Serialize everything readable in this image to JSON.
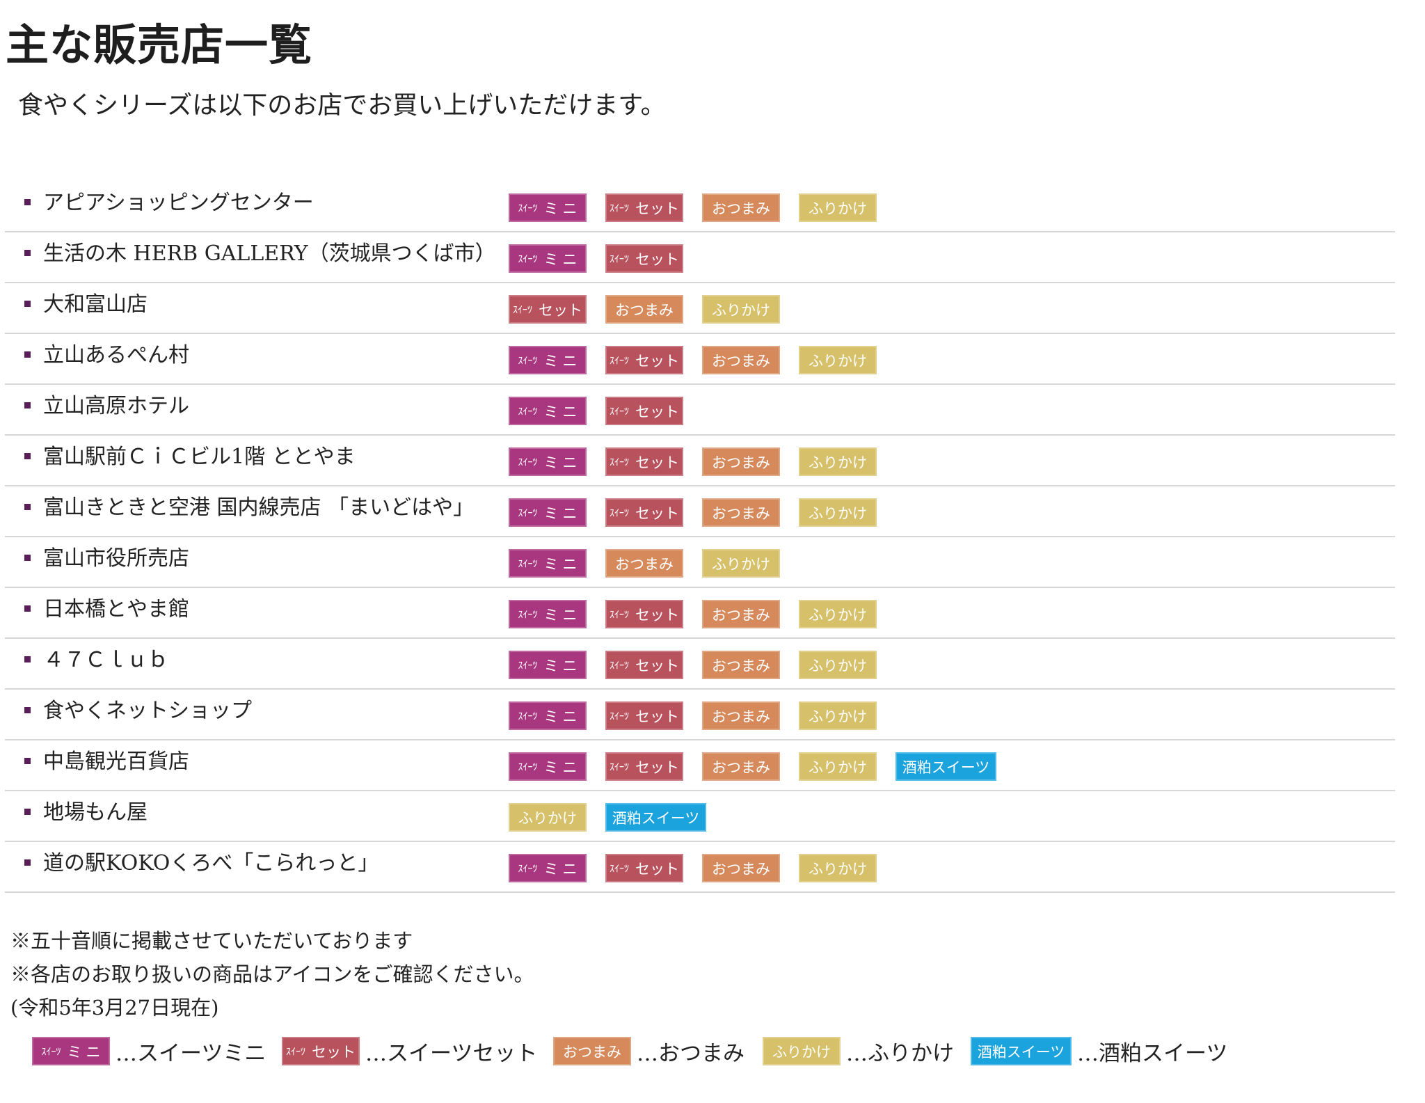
{
  "title": "主な販売店一覧",
  "intro": "食やくシリーズは以下のお店でお買い上げいただけます。",
  "badge_types": {
    "mini": {
      "small": "ｽｲｰﾂ",
      "main": "ミニ",
      "color": "#a8377f"
    },
    "set": {
      "small": "ｽｲｰﾂ",
      "main": "セット",
      "color": "#b8525d"
    },
    "otsumami": {
      "small": "",
      "main": "おつまみ",
      "color": "#d68a5c"
    },
    "furikake": {
      "small": "",
      "main": "ふりかけ",
      "color": "#d7c06a"
    },
    "sakekasu": {
      "small": "",
      "main": "酒粕スイーツ",
      "color": "#1aa3dc"
    }
  },
  "stores": [
    {
      "name": "アピアショッピングセンター",
      "badges": [
        "mini",
        "set",
        "otsumami",
        "furikake"
      ]
    },
    {
      "name": "生活の木 HERB GALLERY（茨城県つくば市）",
      "badges": [
        "mini",
        "set"
      ]
    },
    {
      "name": "大和富山店",
      "badges": [
        "set",
        "otsumami",
        "furikake"
      ]
    },
    {
      "name": "立山あるぺん村",
      "badges": [
        "mini",
        "set",
        "otsumami",
        "furikake"
      ]
    },
    {
      "name": "立山高原ホテル",
      "badges": [
        "mini",
        "set"
      ]
    },
    {
      "name": "富山駅前ＣｉＣビル1階 ととやま",
      "badges": [
        "mini",
        "set",
        "otsumami",
        "furikake"
      ]
    },
    {
      "name": "富山きときと空港 国内線売店 「まいどはや」",
      "badges": [
        "mini",
        "set",
        "otsumami",
        "furikake"
      ]
    },
    {
      "name": "富山市役所売店",
      "badges": [
        "mini",
        "otsumami",
        "furikake"
      ]
    },
    {
      "name": "日本橋とやま館",
      "badges": [
        "mini",
        "set",
        "otsumami",
        "furikake"
      ]
    },
    {
      "name": "４７Ｃｌｕｂ",
      "badges": [
        "mini",
        "set",
        "otsumami",
        "furikake"
      ]
    },
    {
      "name": "食やくネットショップ",
      "badges": [
        "mini",
        "set",
        "otsumami",
        "furikake"
      ]
    },
    {
      "name": "中島観光百貨店",
      "badges": [
        "mini",
        "set",
        "otsumami",
        "furikake",
        "sakekasu"
      ]
    },
    {
      "name": "地場もん屋",
      "badges": [
        "furikake",
        "sakekasu"
      ]
    },
    {
      "name": "道の駅KOKOくろべ「こられっと」",
      "badges": [
        "mini",
        "set",
        "otsumami",
        "furikake"
      ]
    }
  ],
  "notes": [
    "※五十音順に掲載させていただいております",
    "※各店のお取り扱いの商品はアイコンをご確認ください。",
    "(令和5年3月27日現在)"
  ],
  "legend": [
    {
      "type": "mini",
      "text": "…スイーツミニ"
    },
    {
      "type": "set",
      "text": "…スイーツセット"
    },
    {
      "type": "otsumami",
      "text": "…おつまみ"
    },
    {
      "type": "furikake",
      "text": "…ふりかけ"
    },
    {
      "type": "sakekasu",
      "text": "…酒粕スイーツ"
    }
  ]
}
